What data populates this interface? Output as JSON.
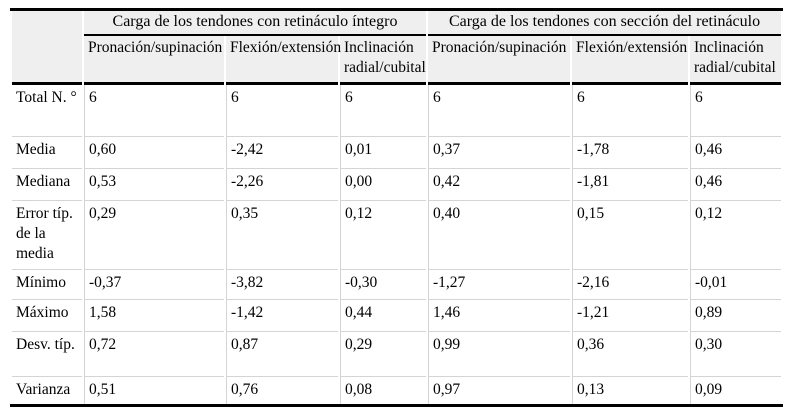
{
  "table": {
    "group_headers": [
      "Carga de los tendones con retináculo íntegro",
      "Carga de los tendones con sección del retináculo"
    ],
    "column_headers": [
      "Pronación/supinación",
      "Flexión/extensión",
      "Inclinación radial/cubital",
      "Pronación/supinación",
      "Flexión/extensión",
      "Inclinación radial/cubital"
    ],
    "rows": [
      {
        "label": "Total N. °",
        "values": [
          "6",
          "6",
          "6",
          "6",
          "6",
          "6"
        ]
      },
      {
        "label": "Media",
        "values": [
          "0,60",
          "-2,42",
          "0,01",
          "0,37",
          "-1,78",
          "0,46"
        ]
      },
      {
        "label": "Mediana",
        "values": [
          "0,53",
          "-2,26",
          "0,00",
          "0,42",
          "-1,81",
          "0,46"
        ]
      },
      {
        "label": "Error típ. de la media",
        "values": [
          "0,29",
          "0,35",
          "0,12",
          "0,40",
          "0,15",
          "0,12"
        ]
      },
      {
        "label": "Mínimo",
        "values": [
          "-0,37",
          "-3,82",
          "-0,30",
          "-1,27",
          "-2,16",
          "-0,01"
        ]
      },
      {
        "label": "Máximo",
        "values": [
          "1,58",
          "-1,42",
          "0,44",
          "1,46",
          "-1,21",
          "0,89"
        ]
      },
      {
        "label": "Desv. típ.",
        "values": [
          "0,72",
          "0,87",
          "0,29",
          "0,99",
          "0,36",
          "0,30"
        ]
      },
      {
        "label": "Varianza",
        "values": [
          "0,51",
          "0,76",
          "0,08",
          "0,97",
          "0,13",
          "0,09"
        ]
      }
    ],
    "colors": {
      "header_background": "#efefef",
      "heavy_border": "#000000",
      "light_border": "#d4d4d4",
      "text": "#000000",
      "page_background": "#ffffff"
    }
  }
}
